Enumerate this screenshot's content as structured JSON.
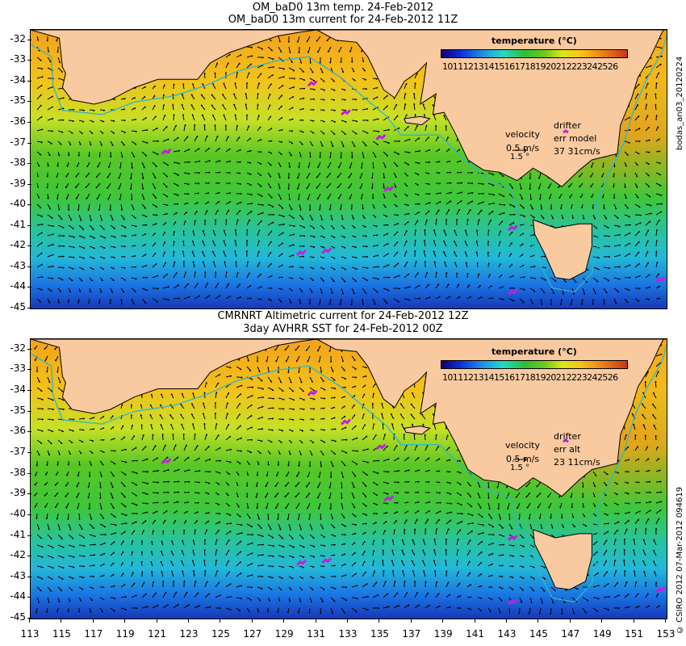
{
  "panels": [
    {
      "title_line1": "OM_baD0 13m temp. 24-Feb-2012",
      "title_line2": "OM_baD0 13m current for 24-Feb-2012 11Z",
      "legend_title": "temperature (°C)",
      "colorbar_labels": "1011121314151617181920212223242526",
      "velocity_label": "velocity",
      "velocity_scale": "0.5 m/s",
      "velocity_sub": "1.5 °",
      "drifter_label": "drifter",
      "err_label": "err model",
      "err_values": "37 31cm/s",
      "side_label": "bodas_an03_20120224"
    },
    {
      "title_line1": "CMRNRT Altimetric current for 24-Feb-2012 12Z",
      "title_line2": "3day AVHRR SST for 24-Feb-2012 00Z",
      "legend_title": "temperature (°C)",
      "colorbar_labels": "1011121314151617181920212223242526",
      "velocity_label": "velocity",
      "velocity_scale": "0.5 m/s",
      "velocity_sub": "1.5 °",
      "drifter_label": "drifter",
      "err_label": "err alt",
      "err_values": "23 11cm/s",
      "side_label": "© CSIRO 2012   07-Mar-2012 094619"
    }
  ],
  "y_ticks": [
    "-32",
    "-33",
    "-34",
    "-35",
    "-36",
    "-37",
    "-38",
    "-39",
    "-40",
    "-41",
    "-42",
    "-43",
    "-44",
    "-45"
  ],
  "x_ticks": [
    "113",
    "115",
    "117",
    "119",
    "121",
    "123",
    "125",
    "127",
    "129",
    "131",
    "133",
    "135",
    "137",
    "139",
    "141",
    "143",
    "145",
    "147",
    "149",
    "151",
    "153"
  ],
  "map": {
    "lon_range": [
      113,
      153
    ],
    "lat_range": [
      -45,
      -31.5
    ],
    "colors": {
      "land": "#f9c99f",
      "coast": "#000000",
      "shelf_contour": "#2fb6c8",
      "drifter": "#c020e0"
    },
    "drifters": [
      [
        130.7,
        -34.1
      ],
      [
        132.8,
        -35.5
      ],
      [
        135.0,
        -36.7
      ],
      [
        121.5,
        -37.4
      ],
      [
        135.5,
        -39.2
      ],
      [
        130.0,
        -42.3
      ],
      [
        131.6,
        -42.2
      ],
      [
        143.3,
        -41.1
      ],
      [
        143.3,
        -44.2
      ],
      [
        152.6,
        -43.6
      ]
    ]
  }
}
